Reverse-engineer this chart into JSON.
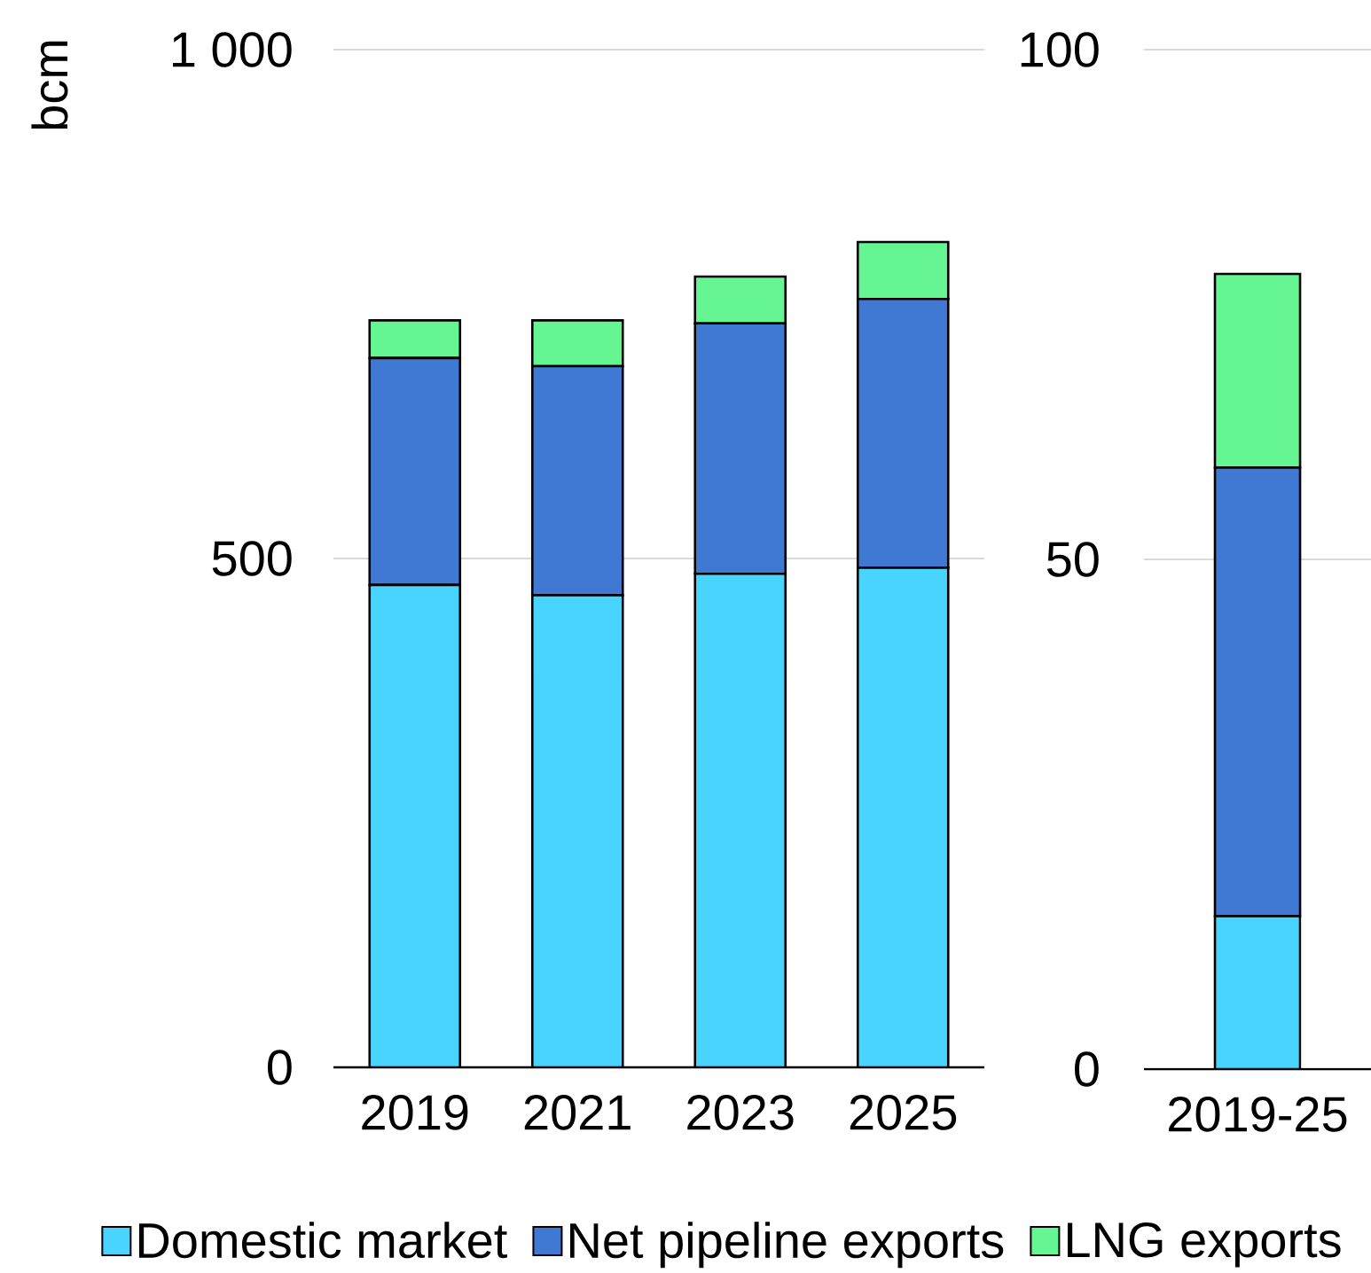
{
  "chart_data": [
    {
      "type": "bar",
      "stacked": true,
      "ylabel": "bcm",
      "categories": [
        "2019",
        "2021",
        "2023",
        "2025"
      ],
      "series": [
        {
          "name": "Domestic market",
          "color": "#48d4ff",
          "values": [
            474,
            464,
            485,
            491
          ]
        },
        {
          "name": "Net pipeline exports",
          "color": "#3f79d3",
          "values": [
            223,
            225,
            246,
            264
          ]
        },
        {
          "name": "LNG exports",
          "color": "#66f593",
          "values": [
            37,
            45,
            46,
            56
          ]
        }
      ],
      "ylim": [
        0,
        1000
      ],
      "yticks": [
        0,
        500,
        {
          "value": 1000,
          "label": "1 000"
        }
      ],
      "grid": "y",
      "legend": "bottom"
    },
    {
      "type": "bar",
      "stacked": true,
      "categories": [
        "2019-25"
      ],
      "series": [
        {
          "color": "#48d4ff",
          "values": [
            15
          ]
        },
        {
          "color": "#3f79d3",
          "values": [
            44
          ]
        },
        {
          "color": "#66f593",
          "values": [
            19
          ]
        }
      ],
      "ylim": [
        0,
        100
      ],
      "yticks": [
        0,
        50,
        100
      ],
      "grid": "y"
    }
  ]
}
